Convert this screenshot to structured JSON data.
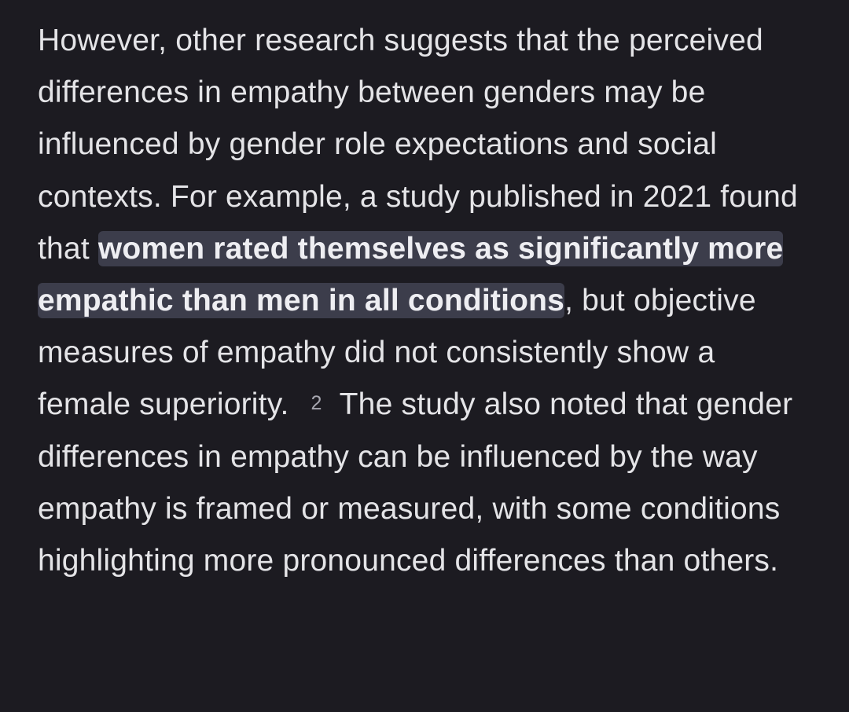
{
  "paragraph": {
    "before_highlight": "However, other research suggests that the perceived differences in empathy between genders may be influenced by gender role expectations and social contexts. For example, a study published in 2021 found that ",
    "highlight": "women rated themselves as significantly more empathic than men in all conditions",
    "after_highlight": ", but objective measures of empathy did not consistently show a female superiority.",
    "citation": "2",
    "after_citation": "The study also noted that gender differences in empathy can be influenced by the way empathy is framed or measured, with some conditions highlighting more pronounced differences than others."
  },
  "colors": {
    "background": "#1c1b21",
    "text": "#e4e4e7",
    "highlight_bg": "#3c3d4b",
    "citation": "#a7a7b0"
  }
}
